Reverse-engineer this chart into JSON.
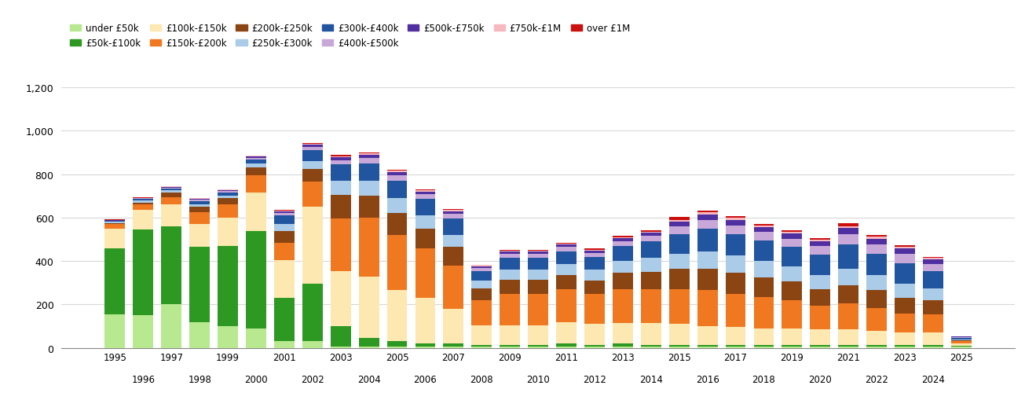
{
  "years": [
    1995,
    1996,
    1997,
    1998,
    1999,
    2000,
    2001,
    2002,
    2003,
    2004,
    2005,
    2006,
    2007,
    2008,
    2009,
    2010,
    2011,
    2012,
    2013,
    2014,
    2015,
    2016,
    2017,
    2018,
    2019,
    2020,
    2021,
    2022,
    2023,
    2024,
    2025
  ],
  "series": {
    "under_50k": [
      155,
      150,
      200,
      120,
      100,
      90,
      30,
      30,
      5,
      5,
      5,
      5,
      5,
      5,
      5,
      5,
      5,
      5,
      5,
      5,
      5,
      5,
      5,
      5,
      5,
      5,
      5,
      5,
      5,
      5,
      5
    ],
    "50k_100k": [
      305,
      395,
      360,
      345,
      370,
      450,
      200,
      265,
      95,
      40,
      25,
      15,
      15,
      10,
      10,
      10,
      15,
      10,
      15,
      10,
      10,
      10,
      10,
      10,
      10,
      10,
      10,
      10,
      10,
      10,
      5
    ],
    "100k_150k": [
      90,
      90,
      100,
      105,
      130,
      175,
      175,
      355,
      255,
      285,
      235,
      210,
      160,
      90,
      90,
      90,
      100,
      95,
      95,
      100,
      95,
      85,
      80,
      75,
      75,
      70,
      70,
      65,
      55,
      55,
      10
    ],
    "150k_200k": [
      20,
      25,
      35,
      55,
      60,
      80,
      80,
      115,
      240,
      270,
      255,
      230,
      200,
      115,
      145,
      145,
      150,
      140,
      155,
      155,
      160,
      165,
      155,
      145,
      130,
      110,
      120,
      105,
      90,
      85,
      10
    ],
    "200k_250k": [
      5,
      10,
      20,
      25,
      30,
      35,
      55,
      60,
      110,
      100,
      100,
      90,
      85,
      55,
      65,
      65,
      65,
      60,
      75,
      80,
      95,
      100,
      95,
      90,
      85,
      75,
      85,
      80,
      70,
      65,
      5
    ],
    "250k_300k": [
      5,
      8,
      10,
      12,
      12,
      18,
      30,
      35,
      65,
      70,
      70,
      60,
      55,
      35,
      45,
      45,
      50,
      50,
      55,
      65,
      70,
      80,
      80,
      75,
      70,
      65,
      75,
      70,
      65,
      55,
      5
    ],
    "300k_400k": [
      5,
      8,
      10,
      15,
      15,
      20,
      40,
      50,
      75,
      80,
      80,
      75,
      75,
      45,
      55,
      55,
      60,
      60,
      70,
      75,
      90,
      105,
      100,
      95,
      90,
      95,
      110,
      100,
      95,
      80,
      5
    ],
    "400k_500k": [
      2,
      3,
      4,
      6,
      6,
      8,
      12,
      15,
      20,
      25,
      25,
      22,
      22,
      14,
      18,
      18,
      20,
      18,
      22,
      25,
      35,
      40,
      40,
      38,
      38,
      38,
      48,
      43,
      42,
      33,
      4
    ],
    "500k_750k": [
      2,
      2,
      3,
      4,
      4,
      6,
      8,
      10,
      12,
      15,
      15,
      13,
      13,
      8,
      10,
      10,
      10,
      10,
      13,
      15,
      22,
      25,
      25,
      23,
      23,
      23,
      28,
      25,
      25,
      20,
      3
    ],
    "750k_1M": [
      1,
      1,
      2,
      2,
      2,
      3,
      4,
      5,
      6,
      7,
      7,
      6,
      6,
      4,
      5,
      5,
      5,
      5,
      5,
      6,
      8,
      9,
      9,
      8,
      8,
      8,
      10,
      9,
      9,
      7,
      2
    ],
    "over_1M": [
      1,
      1,
      1,
      1,
      2,
      2,
      3,
      4,
      5,
      5,
      5,
      5,
      5,
      3,
      4,
      4,
      4,
      4,
      5,
      5,
      12,
      7,
      7,
      7,
      7,
      6,
      15,
      8,
      7,
      5,
      1
    ]
  },
  "colors": {
    "under_50k": "#b8e890",
    "50k_100k": "#2d9922",
    "100k_150k": "#fce8b0",
    "150k_200k": "#f07820",
    "200k_250k": "#8b4513",
    "250k_300k": "#aacce8",
    "300k_400k": "#2255a0",
    "400k_500k": "#c8a8d8",
    "500k_750k": "#5030a0",
    "750k_1M": "#f8b8c0",
    "over_1M": "#cc1010"
  },
  "legend_labels": {
    "under_50k": "under £50k",
    "50k_100k": "£50k-£100k",
    "100k_150k": "£100k-£150k",
    "150k_200k": "£150k-£200k",
    "200k_250k": "£200k-£250k",
    "250k_300k": "£250k-£300k",
    "300k_400k": "£300k-£400k",
    "400k_500k": "£400k-£500k",
    "500k_750k": "£500k-£750k",
    "750k_1M": "£750k-£1M",
    "over_1M": "over £1M"
  },
  "ylim": [
    0,
    1200
  ],
  "yticks": [
    0,
    200,
    400,
    600,
    800,
    1000,
    1200
  ],
  "background_color": "#ffffff",
  "grid_color": "#d8d8d8"
}
